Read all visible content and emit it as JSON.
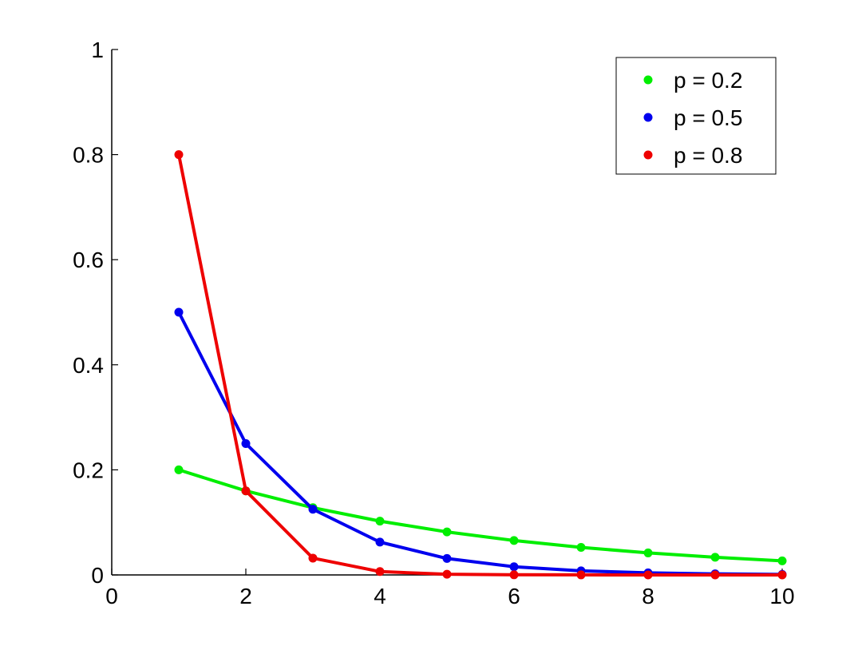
{
  "chart_data": {
    "type": "line",
    "title": "",
    "xlabel": "",
    "ylabel": "",
    "xlim": [
      0,
      10
    ],
    "ylim": [
      0,
      1
    ],
    "xticks": [
      0,
      2,
      4,
      6,
      8,
      10
    ],
    "yticks": [
      0,
      0.2,
      0.4,
      0.6,
      0.8,
      1
    ],
    "xtick_labels": [
      "0",
      "2",
      "4",
      "6",
      "8",
      "10"
    ],
    "ytick_labels": [
      "0",
      "0.2",
      "0.4",
      "0.6",
      "0.8",
      "1"
    ],
    "grid": false,
    "legend_position": "top-right",
    "x": [
      1,
      2,
      3,
      4,
      5,
      6,
      7,
      8,
      9,
      10
    ],
    "series": [
      {
        "name": "p = 0.2",
        "color": "#00ee00",
        "values": [
          0.2,
          0.16,
          0.128,
          0.1024,
          0.0819,
          0.0655,
          0.0524,
          0.0419,
          0.0336,
          0.0268
        ]
      },
      {
        "name": "p = 0.5",
        "color": "#0000ee",
        "values": [
          0.5,
          0.25,
          0.125,
          0.0625,
          0.0313,
          0.0156,
          0.0078,
          0.0039,
          0.002,
          0.001
        ]
      },
      {
        "name": "p = 0.8",
        "color": "#ee0000",
        "values": [
          0.8,
          0.16,
          0.032,
          0.0064,
          0.0013,
          0.0003,
          0.0001,
          0.0,
          0.0,
          0.0
        ]
      }
    ]
  }
}
